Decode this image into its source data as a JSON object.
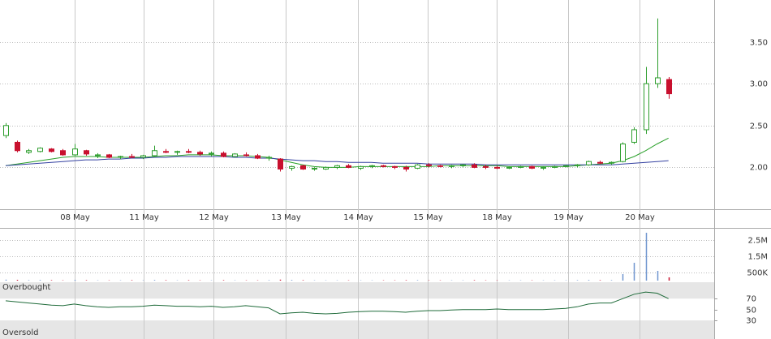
{
  "chart_data": {
    "type": "candlestick",
    "x": [
      0,
      1,
      2,
      3,
      4,
      5,
      6,
      7,
      8,
      9,
      10,
      11,
      12,
      13,
      14,
      15,
      16,
      17,
      18,
      19,
      20,
      21,
      22,
      23,
      24,
      25,
      26,
      27,
      28,
      29,
      30,
      31,
      32,
      33,
      34,
      35,
      36,
      37,
      38,
      39,
      40,
      41,
      42,
      43,
      44,
      45,
      46,
      47,
      48,
      49,
      50,
      51,
      52,
      53,
      54,
      55,
      56,
      57,
      58
    ],
    "open": [
      2.38,
      2.3,
      2.18,
      2.19,
      2.22,
      2.2,
      2.15,
      2.2,
      2.14,
      2.15,
      2.12,
      2.13,
      2.12,
      2.14,
      2.19,
      2.18,
      2.19,
      2.18,
      2.16,
      2.17,
      2.13,
      2.15,
      2.14,
      2.11,
      2.1,
      1.99,
      2.02,
      1.98,
      1.98,
      2.0,
      2.02,
      1.99,
      2.01,
      2.02,
      2.01,
      2.0,
      1.99,
      2.03,
      2.02,
      2.01,
      2.02,
      2.03,
      2.01,
      2.0,
      2.0,
      2.0,
      2.01,
      1.99,
      2.0,
      2.01,
      2.02,
      2.03,
      2.06,
      2.05,
      2.07,
      2.3,
      2.45,
      3.0,
      3.05
    ],
    "high": [
      2.53,
      2.32,
      2.22,
      2.24,
      2.23,
      2.22,
      2.28,
      2.21,
      2.17,
      2.16,
      2.14,
      2.16,
      2.15,
      2.26,
      2.22,
      2.2,
      2.22,
      2.2,
      2.19,
      2.19,
      2.17,
      2.18,
      2.16,
      2.14,
      2.11,
      2.02,
      2.03,
      2.0,
      2.01,
      2.03,
      2.04,
      2.02,
      2.03,
      2.03,
      2.02,
      2.02,
      2.04,
      2.05,
      2.03,
      2.03,
      2.04,
      2.05,
      2.03,
      2.02,
      2.01,
      2.02,
      2.02,
      2.01,
      2.02,
      2.03,
      2.04,
      2.08,
      2.08,
      2.07,
      2.3,
      2.48,
      3.2,
      3.78,
      3.08
    ],
    "low": [
      2.35,
      2.18,
      2.16,
      2.18,
      2.18,
      2.14,
      2.14,
      2.14,
      2.11,
      2.11,
      2.1,
      2.11,
      2.1,
      2.12,
      2.17,
      2.15,
      2.17,
      2.14,
      2.13,
      2.12,
      2.12,
      2.13,
      2.1,
      2.08,
      1.95,
      1.96,
      1.97,
      1.96,
      1.97,
      1.98,
      1.99,
      1.97,
      1.99,
      2.0,
      1.98,
      1.95,
      1.98,
      2.0,
      2.0,
      1.99,
      2.0,
      1.99,
      1.98,
      1.98,
      1.98,
      1.99,
      1.98,
      1.97,
      1.99,
      2.0,
      2.0,
      2.02,
      2.04,
      2.03,
      2.06,
      2.28,
      2.4,
      2.95,
      2.82
    ],
    "close": [
      2.5,
      2.2,
      2.2,
      2.23,
      2.19,
      2.15,
      2.22,
      2.16,
      2.15,
      2.12,
      2.13,
      2.12,
      2.14,
      2.2,
      2.18,
      2.19,
      2.18,
      2.16,
      2.17,
      2.13,
      2.16,
      2.14,
      2.11,
      2.12,
      1.98,
      2.01,
      1.98,
      1.99,
      2.0,
      2.02,
      2.0,
      2.01,
      2.02,
      2.01,
      2.0,
      1.98,
      2.03,
      2.02,
      2.01,
      2.02,
      2.03,
      2.0,
      2.0,
      1.99,
      2.0,
      2.01,
      1.99,
      2.0,
      2.01,
      2.02,
      2.03,
      2.07,
      2.05,
      2.06,
      2.28,
      2.45,
      3.0,
      3.07,
      2.88
    ],
    "up_color": "#2e9e2e",
    "down_color": "#c8102e",
    "moving_averages": [
      {
        "color": "#2aa02a",
        "values": [
          2.02,
          2.04,
          2.06,
          2.08,
          2.1,
          2.12,
          2.13,
          2.13,
          2.13,
          2.12,
          2.12,
          2.12,
          2.12,
          2.13,
          2.14,
          2.14,
          2.15,
          2.15,
          2.15,
          2.14,
          2.14,
          2.14,
          2.13,
          2.12,
          2.09,
          2.06,
          2.03,
          2.01,
          2.0,
          2.0,
          2.0,
          2.01,
          2.01,
          2.01,
          2.01,
          2.01,
          2.01,
          2.01,
          2.02,
          2.02,
          2.02,
          2.02,
          2.02,
          2.02,
          2.01,
          2.01,
          2.01,
          2.01,
          2.01,
          2.01,
          2.02,
          2.03,
          2.04,
          2.05,
          2.08,
          2.13,
          2.2,
          2.28,
          2.35
        ]
      },
      {
        "color": "#3340a0",
        "values": [
          2.02,
          2.03,
          2.04,
          2.05,
          2.06,
          2.07,
          2.08,
          2.09,
          2.09,
          2.1,
          2.1,
          2.11,
          2.11,
          2.12,
          2.12,
          2.13,
          2.13,
          2.13,
          2.13,
          2.13,
          2.12,
          2.12,
          2.11,
          2.11,
          2.1,
          2.09,
          2.08,
          2.08,
          2.07,
          2.07,
          2.06,
          2.06,
          2.06,
          2.05,
          2.05,
          2.05,
          2.05,
          2.04,
          2.04,
          2.04,
          2.04,
          2.04,
          2.03,
          2.03,
          2.03,
          2.03,
          2.03,
          2.03,
          2.03,
          2.03,
          2.03,
          2.03,
          2.03,
          2.03,
          2.04,
          2.05,
          2.06,
          2.07,
          2.08
        ]
      }
    ],
    "xlim": [
      -0.5,
      62
    ],
    "xticks": [
      {
        "value": 6,
        "label": "08 May"
      },
      {
        "value": 12.1,
        "label": "11 May"
      },
      {
        "value": 18.2,
        "label": "12 May"
      },
      {
        "value": 24.5,
        "label": "13 May"
      },
      {
        "value": 30.8,
        "label": "14 May"
      },
      {
        "value": 36.9,
        "label": "15 May"
      },
      {
        "value": 43,
        "label": "18 May"
      },
      {
        "value": 49.2,
        "label": "19 May"
      },
      {
        "value": 55.5,
        "label": "20 May"
      }
    ],
    "ylim": [
      1.5,
      4.0
    ],
    "yticks": [
      {
        "value": 2,
        "label": "2.00"
      },
      {
        "value": 2.5,
        "label": "2.50"
      },
      {
        "value": 3,
        "label": "3.00"
      },
      {
        "value": 3.5,
        "label": "3.50"
      }
    ],
    "volume": {
      "up_color": "#6f95cf",
      "down_color": "#c8102e",
      "values": [
        60000,
        50000,
        30000,
        40000,
        30000,
        20000,
        50000,
        30000,
        20000,
        20000,
        20000,
        30000,
        20000,
        40000,
        30000,
        20000,
        30000,
        20000,
        20000,
        30000,
        20000,
        20000,
        20000,
        30000,
        60000,
        40000,
        30000,
        20000,
        20000,
        20000,
        20000,
        20000,
        20000,
        20000,
        20000,
        30000,
        30000,
        20000,
        20000,
        20000,
        20000,
        30000,
        20000,
        20000,
        20000,
        20000,
        20000,
        20000,
        20000,
        20000,
        30000,
        40000,
        30000,
        30000,
        400000,
        1100000,
        2950000,
        600000,
        200000
      ],
      "ylim": [
        0,
        3150000
      ],
      "yticks": [
        {
          "value": 500000,
          "label": "500K"
        },
        {
          "value": 1500000,
          "label": "1.5M"
        },
        {
          "value": 2500000,
          "label": "2.5M"
        }
      ]
    },
    "rsi": {
      "color": "#1f6b3a",
      "values": [
        66,
        64,
        62,
        60,
        58,
        57,
        60,
        57,
        55,
        54,
        55,
        55,
        56,
        58,
        57,
        56,
        56,
        55,
        56,
        54,
        55,
        57,
        55,
        53,
        42,
        44,
        45,
        43,
        42,
        43,
        45,
        46,
        47,
        47,
        46,
        45,
        47,
        48,
        48,
        49,
        50,
        50,
        50,
        51,
        50,
        50,
        50,
        50,
        51,
        52,
        55,
        60,
        62,
        62,
        70,
        78,
        82,
        80,
        70
      ],
      "ylim": [
        -4,
        100
      ],
      "yticks": [
        30,
        50,
        70
      ],
      "overbought_label": "Overbought",
      "overbought": 70,
      "oversold_label": "Oversold",
      "oversold": 30,
      "band_color": "#e6e6e6"
    }
  }
}
